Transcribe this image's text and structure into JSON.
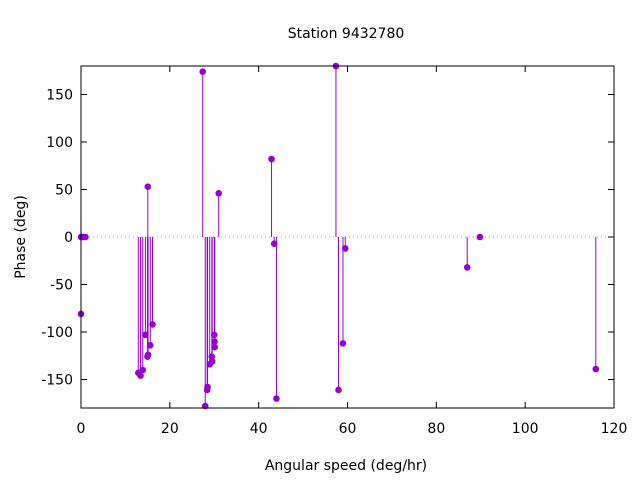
{
  "chart_data": {
    "type": "scatter",
    "style": "impulses-with-points",
    "title": "Station 9432780",
    "xlabel": "Angular speed (deg/hr)",
    "ylabel": "Phase (deg)",
    "xlim": [
      0,
      120
    ],
    "ylim": [
      -180,
      180
    ],
    "xticks": [
      0,
      20,
      40,
      60,
      80,
      100,
      120
    ],
    "yticks": [
      -150,
      -100,
      -50,
      0,
      50,
      100,
      150
    ],
    "zero_line": true,
    "grid": false,
    "legend": "none",
    "colors": {
      "series": "#9400d3",
      "axes": "#000000",
      "zero_line": "#a0a0a0"
    },
    "series": [
      {
        "points": [
          {
            "x": 0.0,
            "y": -81
          },
          {
            "x": 0.04,
            "y": 0
          },
          {
            "x": 0.08,
            "y": 0
          },
          {
            "x": 0.6,
            "y": 0
          },
          {
            "x": 1.0,
            "y": 0
          },
          {
            "x": 12.9,
            "y": -143
          },
          {
            "x": 13.4,
            "y": -146
          },
          {
            "x": 13.9,
            "y": -140
          },
          {
            "x": 14.5,
            "y": -103
          },
          {
            "x": 14.96,
            "y": -126
          },
          {
            "x": 15.04,
            "y": 53
          },
          {
            "x": 15.1,
            "y": -124
          },
          {
            "x": 15.6,
            "y": -114
          },
          {
            "x": 16.1,
            "y": -92
          },
          {
            "x": 27.4,
            "y": 174
          },
          {
            "x": 27.97,
            "y": -178
          },
          {
            "x": 28.4,
            "y": -161
          },
          {
            "x": 28.5,
            "y": -158
          },
          {
            "x": 28.98,
            "y": -134
          },
          {
            "x": 29.46,
            "y": -126
          },
          {
            "x": 29.53,
            "y": -131
          },
          {
            "x": 30.0,
            "y": -103
          },
          {
            "x": 30.08,
            "y": -110
          },
          {
            "x": 30.1,
            "y": -116
          },
          {
            "x": 31.0,
            "y": 46
          },
          {
            "x": 42.9,
            "y": 82
          },
          {
            "x": 43.5,
            "y": -7
          },
          {
            "x": 44.0,
            "y": -170
          },
          {
            "x": 57.4,
            "y": 180
          },
          {
            "x": 57.97,
            "y": -161
          },
          {
            "x": 58.98,
            "y": -112
          },
          {
            "x": 59.5,
            "y": -12
          },
          {
            "x": 86.95,
            "y": -32
          },
          {
            "x": 89.8,
            "y": 0
          },
          {
            "x": 115.9,
            "y": -139
          }
        ]
      }
    ]
  }
}
